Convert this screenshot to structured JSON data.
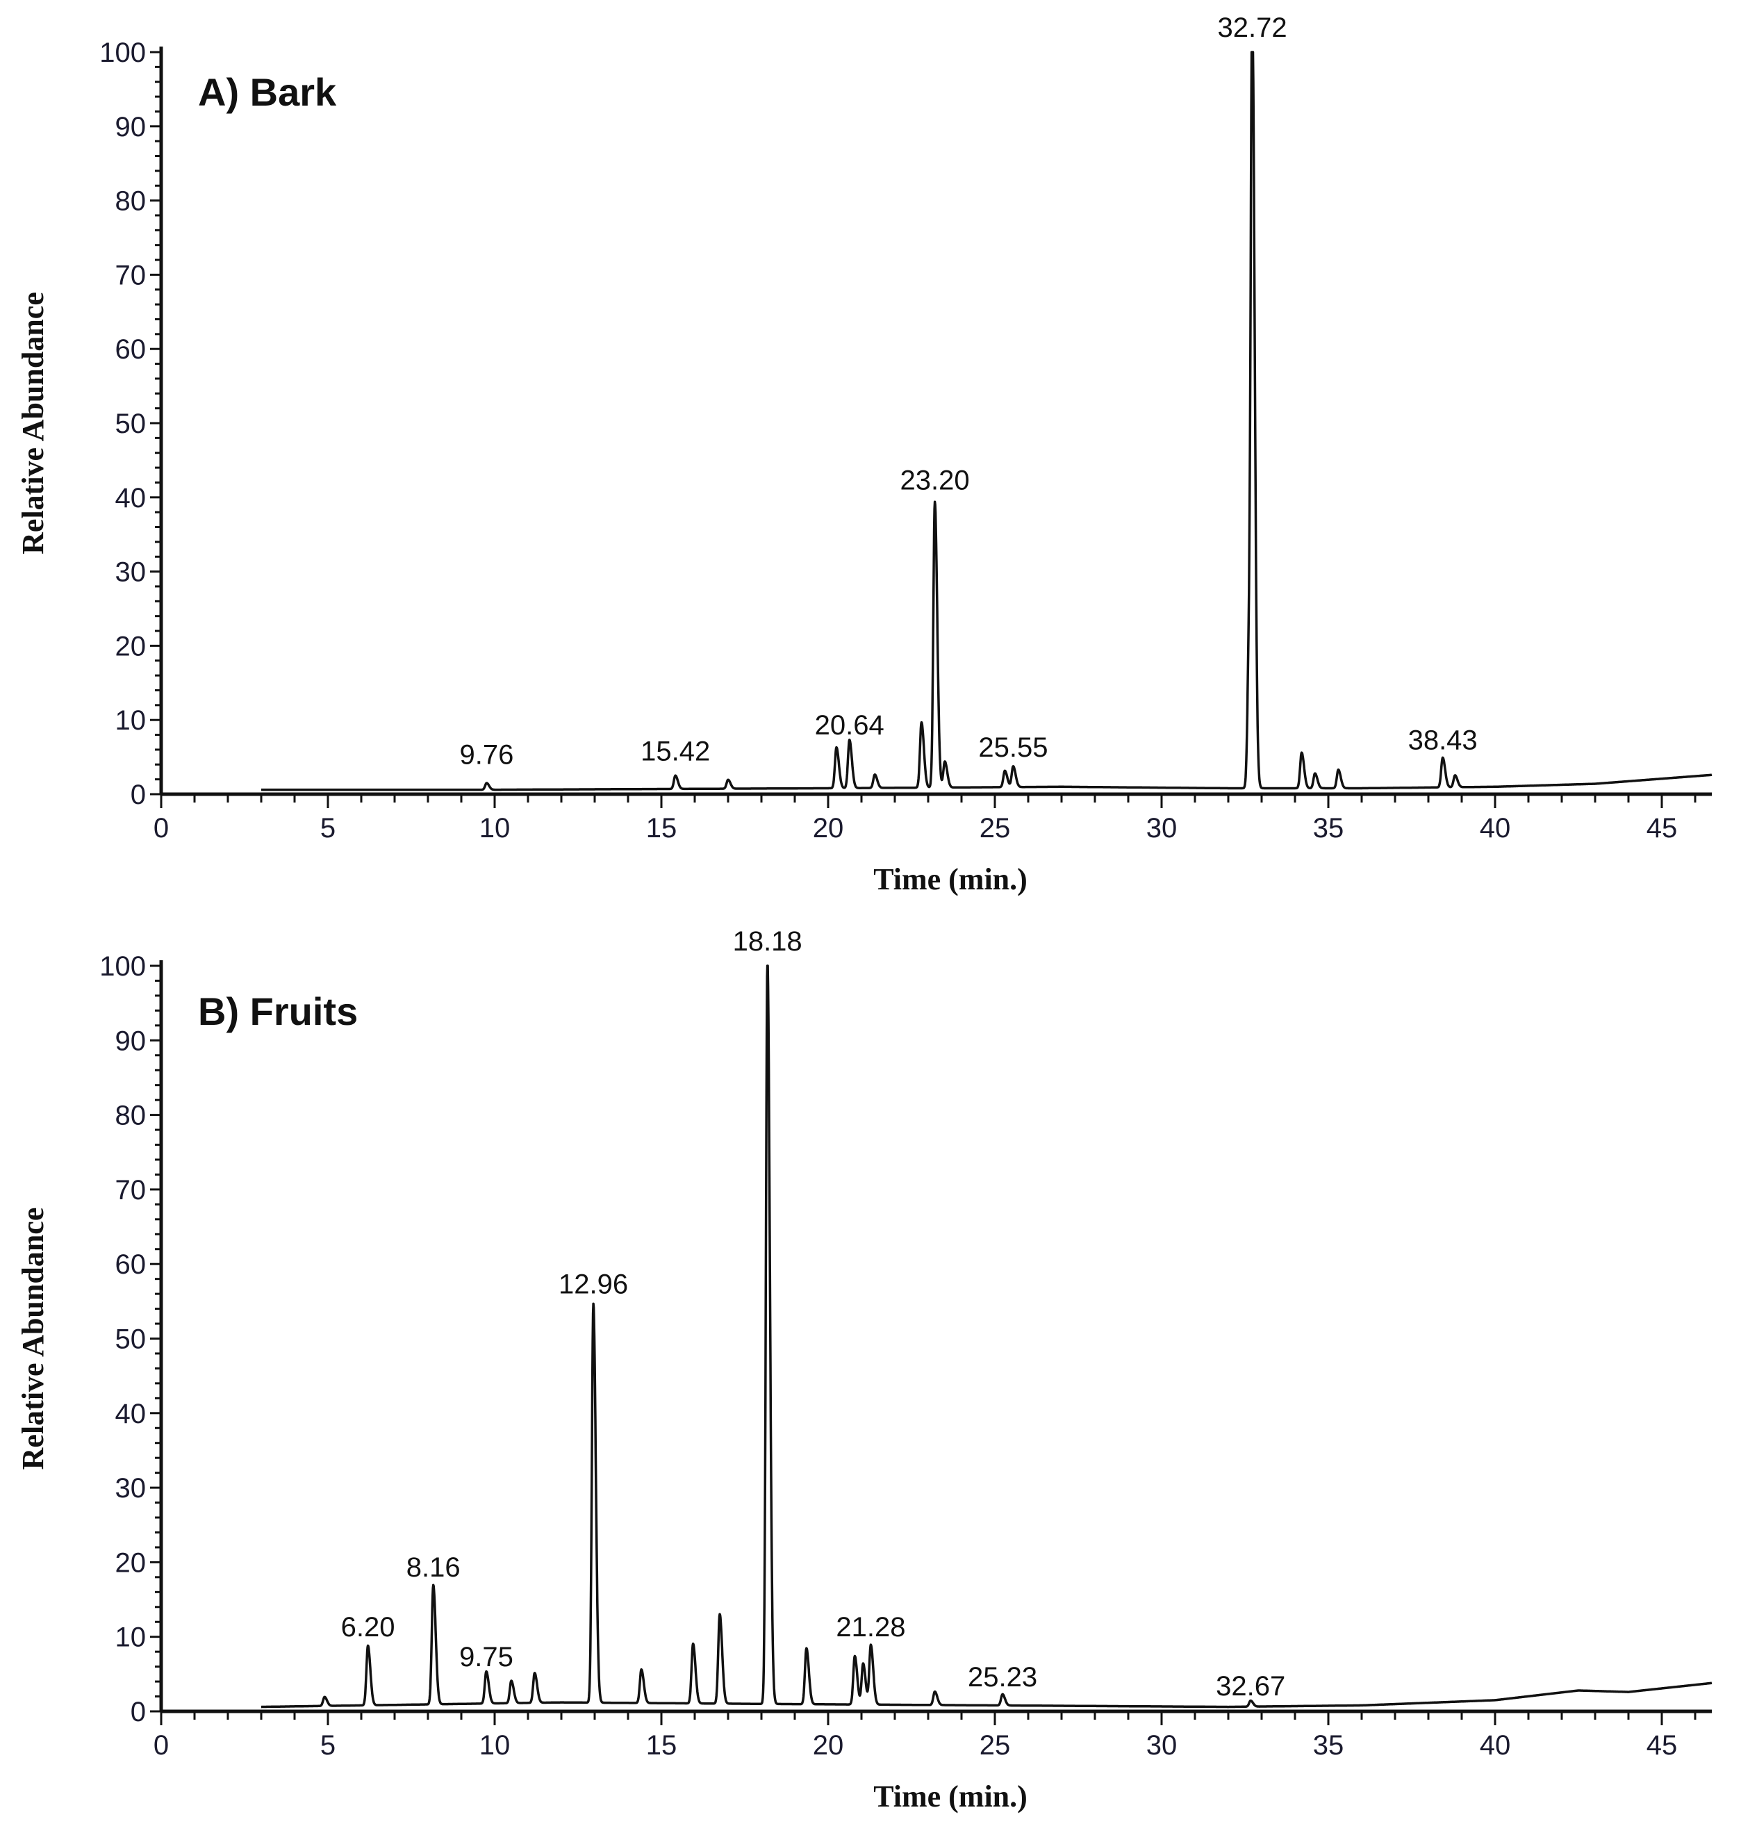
{
  "chart_data": [
    {
      "type": "line",
      "title": "A) Bark",
      "xlabel": "Time (min.)",
      "ylabel": "Relative Abundance",
      "xlim": [
        0,
        46.5
      ],
      "ylim": [
        0,
        100
      ],
      "xticks": [
        "0",
        "5",
        "10",
        "15",
        "20",
        "25",
        "30",
        "35",
        "40",
        "45"
      ],
      "yticks": [
        "0",
        "10",
        "20",
        "30",
        "40",
        "50",
        "60",
        "70",
        "80",
        "90",
        "100"
      ],
      "baseline": [
        [
          3,
          0.6
        ],
        [
          10,
          0.6
        ],
        [
          20,
          0.8
        ],
        [
          27,
          1.0
        ],
        [
          32,
          0.8
        ],
        [
          36,
          0.8
        ],
        [
          40,
          1.0
        ],
        [
          43,
          1.4
        ],
        [
          46.5,
          2.6
        ]
      ],
      "peaks": [
        {
          "rt": 9.76,
          "height": 0.9,
          "label": ""
        },
        {
          "rt": 15.42,
          "height": 1.8,
          "label": ""
        },
        {
          "rt": 17.0,
          "height": 1.2,
          "label": ""
        },
        {
          "rt": 20.25,
          "height": 5.5,
          "label": ""
        },
        {
          "rt": 20.64,
          "height": 6.5,
          "label": ""
        },
        {
          "rt": 21.4,
          "height": 1.8,
          "label": ""
        },
        {
          "rt": 22.8,
          "height": 8.8,
          "label": ""
        },
        {
          "rt": 23.2,
          "height": 38.5,
          "label": ""
        },
        {
          "rt": 23.5,
          "height": 3.5,
          "label": ""
        },
        {
          "rt": 25.3,
          "height": 2.2,
          "label": ""
        },
        {
          "rt": 25.55,
          "height": 2.8,
          "label": ""
        },
        {
          "rt": 32.62,
          "height": 18.0,
          "label": ""
        },
        {
          "rt": 32.72,
          "height": 100,
          "label": ""
        },
        {
          "rt": 34.2,
          "height": 4.8,
          "label": ""
        },
        {
          "rt": 34.6,
          "height": 2.0,
          "label": ""
        },
        {
          "rt": 35.3,
          "height": 2.5,
          "label": ""
        },
        {
          "rt": 38.43,
          "height": 4.0,
          "label": ""
        },
        {
          "rt": 38.8,
          "height": 1.6,
          "label": ""
        }
      ],
      "labels": [
        {
          "text": "9.76",
          "rt": 9.76,
          "y": 3.5
        },
        {
          "text": "15.42",
          "rt": 15.42,
          "y": 4.0
        },
        {
          "text": "20.64",
          "rt": 20.64,
          "y": 7.5
        },
        {
          "text": "23.20",
          "rt": 23.2,
          "y": 40.5
        },
        {
          "text": "25.55",
          "rt": 25.55,
          "y": 4.5
        },
        {
          "text": "32.72",
          "rt": 32.72,
          "y": 101.5
        },
        {
          "text": "38.43",
          "rt": 38.43,
          "y": 5.5
        }
      ]
    },
    {
      "type": "line",
      "title": "B) Fruits",
      "xlabel": "Time (min.)",
      "ylabel": "Relative Abundance",
      "xlim": [
        0,
        46.5
      ],
      "ylim": [
        0,
        100
      ],
      "xticks": [
        "0",
        "5",
        "10",
        "15",
        "20",
        "25",
        "30",
        "35",
        "40",
        "45"
      ],
      "yticks": [
        "0",
        "10",
        "20",
        "30",
        "40",
        "50",
        "60",
        "70",
        "80",
        "90",
        "100"
      ],
      "baseline": [
        [
          3,
          0.6
        ],
        [
          6,
          0.8
        ],
        [
          12,
          1.2
        ],
        [
          18,
          1.0
        ],
        [
          25,
          0.8
        ],
        [
          32,
          0.6
        ],
        [
          36,
          0.8
        ],
        [
          40,
          1.5
        ],
        [
          42.5,
          2.8
        ],
        [
          44,
          2.6
        ],
        [
          46.5,
          3.8
        ]
      ],
      "peaks": [
        {
          "rt": 4.9,
          "height": 1.2,
          "label": ""
        },
        {
          "rt": 6.2,
          "height": 8.0,
          "label": ""
        },
        {
          "rt": 8.16,
          "height": 16.0,
          "label": ""
        },
        {
          "rt": 9.75,
          "height": 4.3,
          "label": ""
        },
        {
          "rt": 10.5,
          "height": 3.0,
          "label": ""
        },
        {
          "rt": 11.2,
          "height": 4.0,
          "label": ""
        },
        {
          "rt": 12.96,
          "height": 53.5,
          "label": ""
        },
        {
          "rt": 14.4,
          "height": 4.5,
          "label": ""
        },
        {
          "rt": 15.95,
          "height": 8.0,
          "label": ""
        },
        {
          "rt": 16.75,
          "height": 12.0,
          "label": ""
        },
        {
          "rt": 18.18,
          "height": 100,
          "label": ""
        },
        {
          "rt": 19.35,
          "height": 7.5,
          "label": ""
        },
        {
          "rt": 20.8,
          "height": 6.5,
          "label": ""
        },
        {
          "rt": 21.05,
          "height": 5.5,
          "label": ""
        },
        {
          "rt": 21.28,
          "height": 8.0,
          "label": ""
        },
        {
          "rt": 23.2,
          "height": 1.8,
          "label": ""
        },
        {
          "rt": 25.23,
          "height": 1.5,
          "label": ""
        },
        {
          "rt": 32.67,
          "height": 0.8,
          "label": ""
        }
      ],
      "labels": [
        {
          "text": "6.20",
          "rt": 6.2,
          "y": 9.5
        },
        {
          "text": "8.16",
          "rt": 8.16,
          "y": 17.5
        },
        {
          "text": "9.75",
          "rt": 9.75,
          "y": 5.5
        },
        {
          "text": "12.96",
          "rt": 12.96,
          "y": 55.5
        },
        {
          "text": "18.18",
          "rt": 18.18,
          "y": 101.5
        },
        {
          "text": "21.28",
          "rt": 21.28,
          "y": 9.5
        },
        {
          "text": "25.23",
          "rt": 25.23,
          "y": 2.8
        },
        {
          "text": "32.67",
          "rt": 32.67,
          "y": 1.6
        }
      ]
    }
  ]
}
